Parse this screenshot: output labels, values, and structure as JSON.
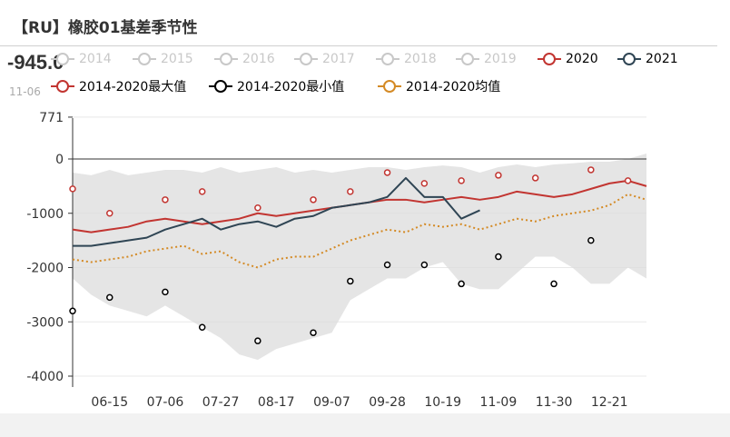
{
  "header": {
    "title": "【RU】橡胶01基差季节性"
  },
  "tooltip": {
    "value": "-945.0",
    "date": "11-06"
  },
  "legend": [
    {
      "name": "2014",
      "color": "#c8c8c8",
      "active": false
    },
    {
      "name": "2015",
      "color": "#c8c8c8",
      "active": false
    },
    {
      "name": "2016",
      "color": "#c8c8c8",
      "active": false
    },
    {
      "name": "2017",
      "color": "#c8c8c8",
      "active": false
    },
    {
      "name": "2018",
      "color": "#c8c8c8",
      "active": false
    },
    {
      "name": "2019",
      "color": "#c8c8c8",
      "active": false
    },
    {
      "name": "2020",
      "color": "#c23531",
      "active": true
    },
    {
      "name": "2021",
      "color": "#2f4554",
      "active": true
    },
    {
      "name": "2014-2020最大值",
      "color": "#c23531",
      "active": true
    },
    {
      "name": "2014-2020最小值",
      "color": "#000000",
      "active": true
    },
    {
      "name": "2014-2020均值",
      "color": "#d48a25",
      "active": true
    }
  ],
  "chart_data": {
    "type": "line",
    "yaxis_ticks": [
      -4000,
      -3000,
      -2000,
      -1000,
      0,
      771
    ],
    "ylim": [
      -4200,
      771
    ],
    "x_ticks": [
      "06-15",
      "07-06",
      "07-27",
      "08-17",
      "09-07",
      "09-28",
      "10-19",
      "11-09",
      "11-30",
      "12-21"
    ],
    "x": [
      "06-01",
      "06-08",
      "06-15",
      "06-22",
      "06-29",
      "07-06",
      "07-13",
      "07-20",
      "07-27",
      "08-03",
      "08-10",
      "08-17",
      "08-24",
      "08-31",
      "09-07",
      "09-14",
      "09-21",
      "09-28",
      "10-05",
      "10-12",
      "10-19",
      "10-26",
      "11-02",
      "11-09",
      "11-16",
      "11-23",
      "11-30",
      "12-07",
      "12-14",
      "12-21",
      "12-28",
      "01-04"
    ],
    "range_band": {
      "upper": [
        -250,
        -300,
        -200,
        -300,
        -250,
        -200,
        -200,
        -250,
        -150,
        -250,
        -200,
        -150,
        -250,
        -200,
        -250,
        -200,
        -150,
        -150,
        -200,
        -150,
        -120,
        -150,
        -250,
        -150,
        -100,
        -150,
        -100,
        -80,
        -50,
        -50,
        0,
        100
      ],
      "lower": [
        -2200,
        -2500,
        -2700,
        -2800,
        -2900,
        -2700,
        -2900,
        -3100,
        -3300,
        -3600,
        -3700,
        -3500,
        -3400,
        -3300,
        -3200,
        -2600,
        -2400,
        -2200,
        -2200,
        -2000,
        -1900,
        -2300,
        -2400,
        -2400,
        -2100,
        -1800,
        -1800,
        -2000,
        -2300,
        -2300,
        -2000,
        -2200
      ]
    },
    "series": [
      {
        "name": "2020",
        "values": [
          -1300,
          -1350,
          -1300,
          -1250,
          -1150,
          -1100,
          -1150,
          -1200,
          -1150,
          -1100,
          -1000,
          -1050,
          -1000,
          -950,
          -900,
          -850,
          -800,
          -750,
          -750,
          -800,
          -750,
          -700,
          -750,
          -700,
          -600,
          -650,
          -700,
          -650,
          -550,
          -450,
          -400,
          -500
        ]
      },
      {
        "name": "2021",
        "values": [
          -1600,
          -1600,
          -1550,
          -1500,
          -1450,
          -1300,
          -1200,
          -1100,
          -1300,
          -1200,
          -1150,
          -1250,
          -1100,
          -1050,
          -900,
          -850,
          -800,
          -700,
          -350,
          -700,
          -700,
          -1100,
          -945,
          null,
          null,
          null,
          null,
          null,
          null,
          null,
          null,
          null
        ]
      },
      {
        "name": "2014-2020最大值",
        "values": [
          -550,
          null,
          -1000,
          null,
          null,
          -750,
          null,
          -600,
          null,
          null,
          -900,
          null,
          null,
          -750,
          null,
          -600,
          null,
          -250,
          null,
          -450,
          null,
          -400,
          null,
          -300,
          null,
          -350,
          null,
          null,
          -200,
          null,
          -400,
          null
        ]
      },
      {
        "name": "2014-2020最小值",
        "values": [
          -2800,
          null,
          -2550,
          null,
          null,
          -2450,
          null,
          -3100,
          null,
          null,
          -3350,
          null,
          null,
          -3200,
          null,
          -2250,
          null,
          -1950,
          null,
          -1950,
          null,
          -2300,
          null,
          -1800,
          null,
          null,
          -2300,
          null,
          -1500,
          null,
          null,
          null
        ]
      },
      {
        "name": "2014-2020均值",
        "values": [
          -1850,
          -1900,
          -1850,
          -1800,
          -1700,
          -1650,
          -1600,
          -1750,
          -1700,
          -1900,
          -2000,
          -1850,
          -1800,
          -1800,
          -1650,
          -1500,
          -1400,
          -1300,
          -1350,
          -1200,
          -1250,
          -1200,
          -1300,
          -1200,
          -1100,
          -1150,
          -1050,
          -1000,
          -950,
          -850,
          -650,
          -750
        ]
      }
    ]
  }
}
